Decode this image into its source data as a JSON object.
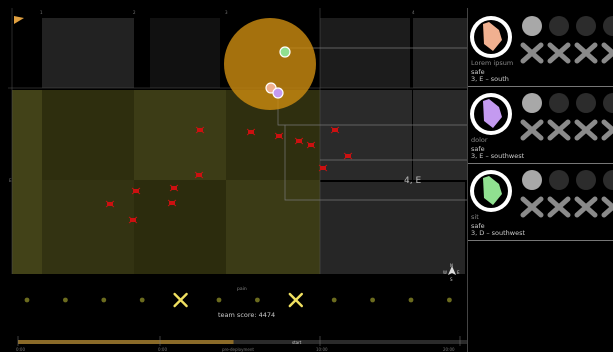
{
  "grid": {
    "top_labels": [
      "1",
      "2",
      "3",
      "4"
    ],
    "left_label": "E"
  },
  "sector_label": "4, E",
  "pain_label": "pain",
  "team_score": "team score: 4474",
  "timeline": {
    "bar_label": "start",
    "tick_labels": [
      "0:00",
      "pre-deployment",
      "10:00",
      "20:00"
    ],
    "progress": 0.48
  },
  "compass": {
    "north": "N",
    "west": "W",
    "east": "E",
    "south": "S"
  },
  "event_markers": {
    "count": 12,
    "x_marker_indices": [
      4,
      7
    ]
  },
  "agents": [
    {
      "name": "Lorem ipsum",
      "color": "#f0b090",
      "status": "safe",
      "location": "3, E – south",
      "health_pips": 4
    },
    {
      "name": "dolor",
      "color": "#c49af0",
      "status": "safe",
      "location": "3, E – southwest",
      "health_pips": 4
    },
    {
      "name": "sit",
      "color": "#90e090",
      "status": "safe",
      "location": "3, D – southwest",
      "health_pips": 4
    }
  ],
  "colors": {
    "hazard_zone": "#c98a10",
    "threat": "#cc1111",
    "olive_region": "#3a3a14",
    "event_x": "#f0e060"
  }
}
